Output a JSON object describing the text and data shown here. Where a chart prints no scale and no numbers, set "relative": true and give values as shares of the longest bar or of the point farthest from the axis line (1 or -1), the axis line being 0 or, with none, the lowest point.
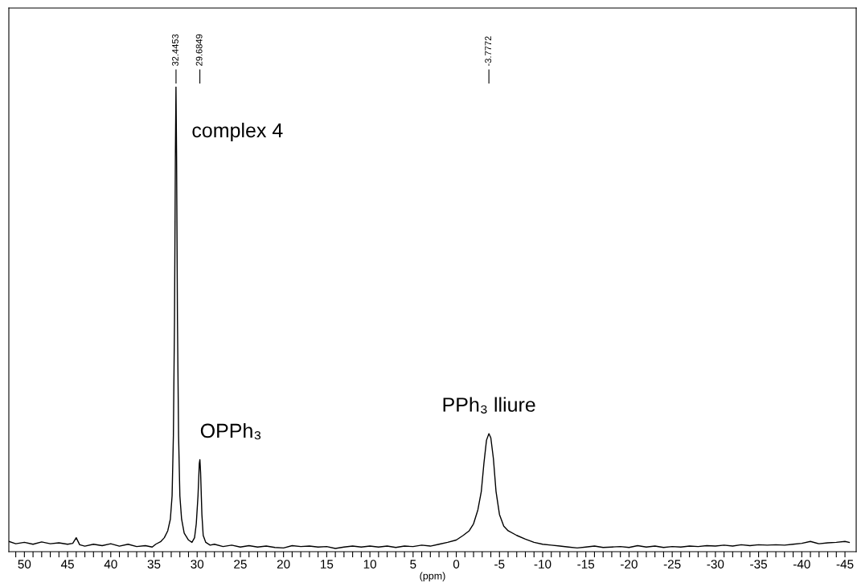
{
  "chart_data": {
    "type": "line",
    "relative": true,
    "xlabel": "(ppm)",
    "xlim": [
      51.8,
      -46.3
    ],
    "xticks": [
      {
        "value": 51,
        "label": null
      },
      50,
      {
        "value": 49,
        "label": null
      },
      {
        "value": 48,
        "label": null
      },
      {
        "value": 47,
        "label": null
      },
      {
        "value": 46,
        "label": null
      },
      45,
      {
        "value": 44,
        "label": null
      },
      {
        "value": 43,
        "label": null
      },
      {
        "value": 42,
        "label": null
      },
      {
        "value": 41,
        "label": null
      },
      40,
      {
        "value": 39,
        "label": null
      },
      {
        "value": 38,
        "label": null
      },
      {
        "value": 37,
        "label": null
      },
      {
        "value": 36,
        "label": null
      },
      35,
      {
        "value": 34,
        "label": null
      },
      {
        "value": 33,
        "label": null
      },
      {
        "value": 32,
        "label": null
      },
      {
        "value": 31,
        "label": null
      },
      30,
      {
        "value": 29,
        "label": null
      },
      {
        "value": 28,
        "label": null
      },
      {
        "value": 27,
        "label": null
      },
      {
        "value": 26,
        "label": null
      },
      25,
      {
        "value": 24,
        "label": null
      },
      {
        "value": 23,
        "label": null
      },
      {
        "value": 22,
        "label": null
      },
      {
        "value": 21,
        "label": null
      },
      20,
      {
        "value": 19,
        "label": null
      },
      {
        "value": 18,
        "label": null
      },
      {
        "value": 17,
        "label": null
      },
      {
        "value": 16,
        "label": null
      },
      15,
      {
        "value": 14,
        "label": null
      },
      {
        "value": 13,
        "label": null
      },
      {
        "value": 12,
        "label": null
      },
      {
        "value": 11,
        "label": null
      },
      10,
      {
        "value": 9,
        "label": null
      },
      {
        "value": 8,
        "label": null
      },
      {
        "value": 7,
        "label": null
      },
      {
        "value": 6,
        "label": null
      },
      5,
      {
        "value": 4,
        "label": null
      },
      {
        "value": 3,
        "label": null
      },
      {
        "value": 2,
        "label": null
      },
      {
        "value": 1,
        "label": null
      },
      0,
      {
        "value": -1,
        "label": null
      },
      {
        "value": -2,
        "label": null
      },
      {
        "value": -3,
        "label": null
      },
      {
        "value": -4,
        "label": null
      },
      -5,
      {
        "value": -6,
        "label": null
      },
      {
        "value": -7,
        "label": null
      },
      {
        "value": -8,
        "label": null
      },
      {
        "value": -9,
        "label": null
      },
      -10,
      {
        "value": -11,
        "label": null
      },
      {
        "value": -12,
        "label": null
      },
      {
        "value": -13,
        "label": null
      },
      {
        "value": -14,
        "label": null
      },
      -15,
      {
        "value": -16,
        "label": null
      },
      {
        "value": -17,
        "label": null
      },
      {
        "value": -18,
        "label": null
      },
      {
        "value": -19,
        "label": null
      },
      -20,
      {
        "value": -21,
        "label": null
      },
      {
        "value": -22,
        "label": null
      },
      {
        "value": -23,
        "label": null
      },
      {
        "value": -24,
        "label": null
      },
      -25,
      {
        "value": -26,
        "label": null
      },
      {
        "value": -27,
        "label": null
      },
      {
        "value": -28,
        "label": null
      },
      {
        "value": -29,
        "label": null
      },
      -30,
      {
        "value": -31,
        "label": null
      },
      {
        "value": -32,
        "label": null
      },
      {
        "value": -33,
        "label": null
      },
      {
        "value": -34,
        "label": null
      },
      -35,
      {
        "value": -36,
        "label": null
      },
      {
        "value": -37,
        "label": null
      },
      {
        "value": -38,
        "label": null
      },
      {
        "value": -39,
        "label": null
      },
      -40,
      {
        "value": -41,
        "label": null
      },
      {
        "value": -42,
        "label": null
      },
      {
        "value": -43,
        "label": null
      },
      {
        "value": -44,
        "label": null
      },
      -45
    ],
    "series": [
      {
        "color": "#000000",
        "x": [
          51.8,
          51,
          50,
          49,
          48,
          47,
          46,
          45,
          44.4,
          44.0,
          43.6,
          43,
          42,
          41,
          40,
          39,
          38,
          37,
          36,
          35.2,
          34.8,
          34.2,
          33.8,
          33.4,
          33.1,
          32.9,
          32.75,
          32.62,
          32.52,
          32.45,
          32.38,
          32.28,
          32.15,
          32.0,
          31.8,
          31.5,
          31.0,
          30.6,
          30.3,
          30.1,
          29.9,
          29.75,
          29.68,
          29.6,
          29.45,
          29.3,
          29.0,
          28.5,
          28,
          27,
          26,
          25,
          24,
          23,
          22,
          21,
          20,
          19,
          18,
          17,
          16,
          15,
          14,
          13,
          12,
          11,
          10,
          9,
          8,
          7,
          6,
          5,
          4,
          3,
          2,
          1,
          0,
          -0.8,
          -1.5,
          -2,
          -2.5,
          -2.9,
          -3.2,
          -3.5,
          -3.78,
          -4.0,
          -4.3,
          -4.6,
          -5.0,
          -5.5,
          -6,
          -7,
          -8,
          -9,
          -10,
          -11,
          -12,
          -13,
          -14,
          -15,
          -16,
          -17,
          -18,
          -19,
          -20,
          -21,
          -22,
          -23,
          -24,
          -25,
          -26,
          -27,
          -28,
          -29,
          -30,
          -31,
          -32,
          -33,
          -34,
          -35,
          -36,
          -37,
          -38,
          -39,
          -40,
          -41,
          -42,
          -43,
          -44,
          -45,
          -45.5
        ],
        "values": [
          0.022,
          0.017,
          0.02,
          0.016,
          0.021,
          0.017,
          0.019,
          0.016,
          0.018,
          0.03,
          0.015,
          0.012,
          0.016,
          0.013,
          0.017,
          0.012,
          0.016,
          0.011,
          0.013,
          0.01,
          0.016,
          0.022,
          0.03,
          0.045,
          0.07,
          0.12,
          0.25,
          0.5,
          0.85,
          1.0,
          0.85,
          0.5,
          0.25,
          0.12,
          0.07,
          0.04,
          0.025,
          0.02,
          0.03,
          0.06,
          0.12,
          0.19,
          0.198,
          0.17,
          0.08,
          0.035,
          0.02,
          0.014,
          0.016,
          0.011,
          0.014,
          0.01,
          0.013,
          0.01,
          0.012,
          0.009,
          0.008,
          0.013,
          0.011,
          0.012,
          0.01,
          0.011,
          0.007,
          0.01,
          0.012,
          0.01,
          0.012,
          0.01,
          0.012,
          0.009,
          0.012,
          0.011,
          0.014,
          0.012,
          0.016,
          0.02,
          0.025,
          0.035,
          0.045,
          0.06,
          0.09,
          0.13,
          0.19,
          0.24,
          0.254,
          0.245,
          0.2,
          0.13,
          0.08,
          0.055,
          0.045,
          0.035,
          0.027,
          0.02,
          0.016,
          0.014,
          0.012,
          0.01,
          0.008,
          0.01,
          0.012,
          0.009,
          0.01,
          0.011,
          0.009,
          0.013,
          0.01,
          0.012,
          0.009,
          0.011,
          0.01,
          0.012,
          0.011,
          0.013,
          0.012,
          0.014,
          0.012,
          0.015,
          0.013,
          0.015,
          0.014,
          0.015,
          0.014,
          0.016,
          0.018,
          0.022,
          0.017,
          0.019,
          0.02,
          0.022,
          0.02
        ]
      }
    ],
    "annotations": [
      {
        "text": "32.4453",
        "x": 32.4453
      },
      {
        "text": "29.6849",
        "x": 29.6849
      },
      {
        "text": "-3.7772",
        "x": -3.7772
      },
      {
        "text": "complex 4",
        "x": 32.45,
        "y": 1.0
      },
      {
        "text": "OPPh₃",
        "x": 29.68,
        "y": 0.198
      },
      {
        "text": "PPh₃ lliure",
        "x": -3.78,
        "y": 0.254
      }
    ]
  }
}
